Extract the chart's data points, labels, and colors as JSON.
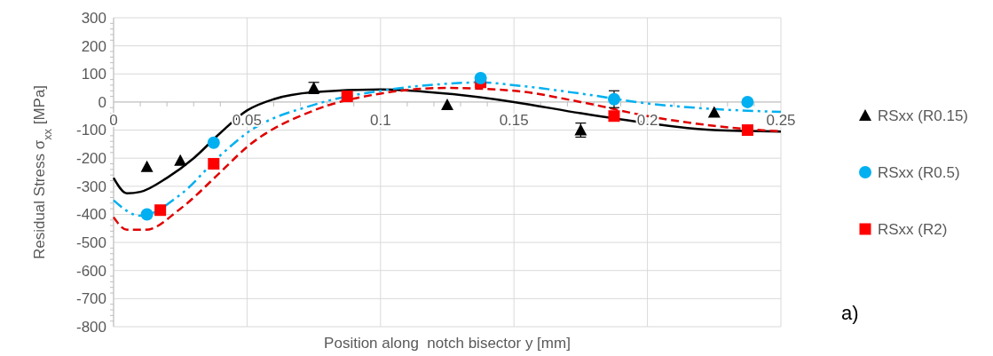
{
  "chart_data": {
    "type": "scatter",
    "xlabel": "Position along  notch bisector y [mm]",
    "ylabel": "Residual Stress σ$_{xx}$ [MPa]",
    "annotations": [
      "a)"
    ],
    "xlim": [
      0,
      0.25
    ],
    "xticks": [
      0,
      0.05,
      0.1,
      0.15,
      0.2,
      0.25
    ],
    "ylim": [
      -800,
      300
    ],
    "yticks": [
      -800,
      -700,
      -600,
      -500,
      -400,
      -300,
      -200,
      -100,
      0,
      100,
      200,
      300
    ],
    "grid": true,
    "legend": "right",
    "series": [
      {
        "name": "RSxx (R0.15)",
        "color": "#000000",
        "marker": "triangle",
        "x": [
          0.0125,
          0.025,
          0.075,
          0.125,
          0.175,
          0.225
        ],
        "values": [
          -230,
          -208,
          50,
          -10,
          -100,
          -37
        ],
        "errors": [
          null,
          null,
          20,
          null,
          25,
          null
        ]
      },
      {
        "name": "RSxx (R0.5)",
        "color": "#00b0f0",
        "marker": "circle",
        "x": [
          0.0125,
          0.0375,
          0.1375,
          0.1875,
          0.2375
        ],
        "values": [
          -400,
          -145,
          85,
          10,
          0
        ],
        "errors": [
          null,
          null,
          null,
          30,
          null
        ]
      },
      {
        "name": "RSxx (R2)",
        "color": "#ff0000",
        "marker": "square",
        "x": [
          0.0175,
          0.0375,
          0.0875,
          0.1375,
          0.1875,
          0.2375
        ],
        "values": [
          -385,
          -220,
          20,
          70,
          -50,
          -100
        ]
      },
      {
        "type": "line",
        "color": "#000000",
        "marker": "none",
        "line_style": "solid",
        "x": [
          0,
          0.005,
          0.01,
          0.02,
          0.03,
          0.04,
          0.05,
          0.06,
          0.075,
          0.1,
          0.125,
          0.15,
          0.175,
          0.2,
          0.225,
          0.25
        ],
        "values": [
          -270,
          -325,
          -320,
          -270,
          -200,
          -110,
          -30,
          10,
          35,
          45,
          30,
          0,
          -40,
          -75,
          -100,
          -105
        ]
      },
      {
        "type": "line",
        "color": "#00b0f0",
        "marker": "none",
        "line_style": "dashdot",
        "x": [
          0,
          0.01,
          0.025,
          0.04,
          0.05,
          0.075,
          0.1,
          0.125,
          0.1375,
          0.15,
          0.175,
          0.2,
          0.225,
          0.25
        ],
        "values": [
          -350,
          -405,
          -330,
          -190,
          -110,
          -10,
          40,
          65,
          70,
          60,
          30,
          -5,
          -25,
          -35
        ]
      },
      {
        "type": "line",
        "color": "#e00000",
        "marker": "none",
        "line_style": "dashed",
        "x": [
          0,
          0.005,
          0.012,
          0.025,
          0.04,
          0.05,
          0.075,
          0.1,
          0.125,
          0.15,
          0.175,
          0.2,
          0.225,
          0.25
        ],
        "values": [
          -410,
          -455,
          -455,
          -380,
          -250,
          -160,
          -30,
          30,
          50,
          40,
          0,
          -50,
          -85,
          -105
        ]
      }
    ]
  }
}
